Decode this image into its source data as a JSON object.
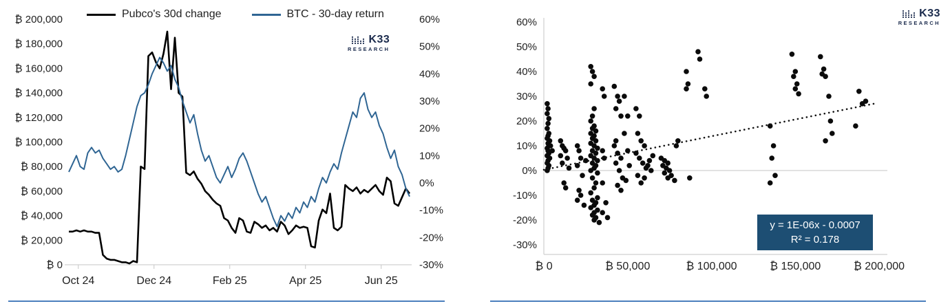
{
  "brand": {
    "name": "K33",
    "sub": "RESEARCH",
    "color": "#1b2b4d"
  },
  "divider_color": "#4a7ebd",
  "text_color": "#1f1f1f",
  "chart_data": [
    {
      "type": "line",
      "title": "",
      "legend_position": "top",
      "grid": false,
      "x": {
        "min": 0,
        "max": 9,
        "ticks": [
          0.25,
          2.25,
          4.25,
          6.25,
          8.25
        ],
        "labels": [
          "Oct 24",
          "Dec 24",
          "Feb 25",
          "Apr 25",
          "Jun 25"
        ]
      },
      "y_left": {
        "min": 0,
        "max": 200000,
        "step": 20000,
        "labels": [
          "₿ 0",
          "₿ 20,000",
          "₿ 40,000",
          "₿ 60,000",
          "₿ 80,000",
          "₿ 100,000",
          "₿ 120,000",
          "₿ 140,000",
          "₿ 160,000",
          "₿ 180,000",
          "₿ 200,000"
        ]
      },
      "y_right": {
        "min": -30,
        "max": 60,
        "step": 10,
        "labels": [
          "-30%",
          "-20%",
          "-10%",
          "0%",
          "10%",
          "20%",
          "30%",
          "40%",
          "50%",
          "60%"
        ]
      },
      "t_start": 0,
      "t_step": 0.1,
      "series": [
        {
          "name": "Pubco's 30d change",
          "color": "#000000",
          "axis": "left",
          "values": [
            27000,
            27000,
            28000,
            27000,
            28000,
            27000,
            27000,
            26000,
            26000,
            8000,
            5000,
            4000,
            4000,
            3000,
            2000,
            2000,
            1000,
            3000,
            2000,
            80000,
            78000,
            170000,
            173000,
            165000,
            160000,
            172000,
            190000,
            143000,
            185000,
            140000,
            137000,
            75000,
            73000,
            76000,
            70000,
            66000,
            60000,
            57000,
            53000,
            50000,
            48000,
            38000,
            36000,
            30000,
            26000,
            38000,
            36000,
            27000,
            26000,
            35000,
            33000,
            30000,
            32000,
            28000,
            30000,
            27000,
            35000,
            32000,
            25000,
            28000,
            32000,
            30000,
            31000,
            30000,
            15000,
            14000,
            36000,
            45000,
            42000,
            58000,
            30000,
            28000,
            31000,
            65000,
            62000,
            60000,
            63000,
            58000,
            61000,
            59000,
            62000,
            65000,
            60000,
            57000,
            71000,
            68000,
            50000,
            48000,
            55000,
            62000,
            58000
          ]
        },
        {
          "name": "BTC - 30-day return",
          "color": "#2f6593",
          "axis": "right",
          "values": [
            4,
            7,
            10,
            6,
            5,
            11,
            13,
            11,
            12,
            9,
            7,
            5,
            6,
            4,
            5,
            10,
            16,
            22,
            28,
            32,
            33,
            36,
            40,
            43,
            46,
            44,
            41,
            43,
            38,
            35,
            30,
            26,
            22,
            25,
            18,
            12,
            8,
            10,
            6,
            2,
            0,
            3,
            6,
            2,
            5,
            9,
            11,
            8,
            4,
            0,
            -4,
            -7,
            -5,
            -9,
            -13,
            -16,
            -12,
            -14,
            -11,
            -13,
            -9,
            -11,
            -7,
            -9,
            -5,
            -7,
            -2,
            2,
            0,
            4,
            7,
            5,
            11,
            16,
            21,
            26,
            24,
            31,
            33,
            27,
            24,
            26,
            21,
            18,
            13,
            9,
            12,
            6,
            3,
            -2,
            -5
          ]
        }
      ]
    },
    {
      "type": "scatter",
      "title": "",
      "grid": "zero-line-only",
      "point_color": "#0b0b0b",
      "x": {
        "min": 0,
        "max": 200000,
        "ticks": [
          0,
          50000,
          100000,
          150000,
          200000
        ],
        "labels": [
          "₿ 0",
          "₿ 50,000",
          "₿ 100,000",
          "₿ 150,000",
          "₿ 200,000"
        ]
      },
      "y": {
        "min": -30,
        "max": 60,
        "step": 10,
        "labels": [
          "-30%",
          "-20%",
          "-10%",
          "0%",
          "10%",
          "20%",
          "30%",
          "40%",
          "50%",
          "60%"
        ]
      },
      "points": [
        [
          2000,
          27
        ],
        [
          2500,
          25
        ],
        [
          2000,
          23
        ],
        [
          3000,
          21
        ],
        [
          2500,
          19
        ],
        [
          2000,
          17
        ],
        [
          3000,
          15
        ],
        [
          2500,
          14
        ],
        [
          2000,
          13
        ],
        [
          3500,
          12
        ],
        [
          2500,
          11
        ],
        [
          3000,
          10
        ],
        [
          2000,
          9
        ],
        [
          2500,
          8
        ],
        [
          3000,
          7
        ],
        [
          2000,
          6
        ],
        [
          3500,
          5
        ],
        [
          2500,
          4
        ],
        [
          2000,
          3
        ],
        [
          3000,
          2
        ],
        [
          2500,
          1
        ],
        [
          2000,
          0
        ],
        [
          4000,
          10
        ],
        [
          5000,
          8
        ],
        [
          10000,
          12
        ],
        [
          11000,
          10
        ],
        [
          12000,
          9
        ],
        [
          13000,
          8
        ],
        [
          10000,
          6
        ],
        [
          14000,
          5
        ],
        [
          11000,
          3
        ],
        [
          12000,
          -5
        ],
        [
          13000,
          -7
        ],
        [
          15000,
          1
        ],
        [
          20000,
          10
        ],
        [
          21000,
          8
        ],
        [
          22000,
          5
        ],
        [
          20000,
          2
        ],
        [
          23000,
          -2
        ],
        [
          21000,
          -8
        ],
        [
          22000,
          -10
        ],
        [
          20000,
          -12
        ],
        [
          24000,
          -14
        ],
        [
          25000,
          4
        ],
        [
          28000,
          42
        ],
        [
          29000,
          40
        ],
        [
          30000,
          38
        ],
        [
          28000,
          35
        ],
        [
          30000,
          25
        ],
        [
          29000,
          22
        ],
        [
          28000,
          20
        ],
        [
          30000,
          18
        ],
        [
          29000,
          17
        ],
        [
          31000,
          16
        ],
        [
          28000,
          15
        ],
        [
          30000,
          14
        ],
        [
          29000,
          13
        ],
        [
          31000,
          12
        ],
        [
          28000,
          11
        ],
        [
          30000,
          10
        ],
        [
          32000,
          9
        ],
        [
          29000,
          8
        ],
        [
          31000,
          7
        ],
        [
          28000,
          6
        ],
        [
          30000,
          5
        ],
        [
          32000,
          4
        ],
        [
          29000,
          3
        ],
        [
          31000,
          2
        ],
        [
          30000,
          1
        ],
        [
          28000,
          0
        ],
        [
          32000,
          -1
        ],
        [
          29000,
          -3
        ],
        [
          31000,
          -5
        ],
        [
          30000,
          -7
        ],
        [
          28000,
          -9
        ],
        [
          32000,
          -11
        ],
        [
          29000,
          -12
        ],
        [
          31000,
          -13
        ],
        [
          30000,
          -14
        ],
        [
          28000,
          -15
        ],
        [
          32000,
          -16
        ],
        [
          30000,
          -17
        ],
        [
          29000,
          -18
        ],
        [
          31000,
          -19
        ],
        [
          30000,
          -20
        ],
        [
          33000,
          -21
        ],
        [
          35000,
          33
        ],
        [
          36000,
          30
        ],
        [
          35000,
          8
        ],
        [
          36000,
          5
        ],
        [
          35000,
          -5
        ],
        [
          37000,
          -13
        ],
        [
          35000,
          -17
        ],
        [
          38000,
          -19
        ],
        [
          42000,
          34
        ],
        [
          44000,
          30
        ],
        [
          45000,
          28
        ],
        [
          43000,
          25
        ],
        [
          46000,
          22
        ],
        [
          48000,
          30
        ],
        [
          42000,
          10
        ],
        [
          44000,
          7
        ],
        [
          46000,
          5
        ],
        [
          43000,
          3
        ],
        [
          45000,
          0
        ],
        [
          47000,
          -3
        ],
        [
          44000,
          -6
        ],
        [
          46000,
          -8
        ],
        [
          43000,
          12
        ],
        [
          48000,
          15
        ],
        [
          50000,
          22
        ],
        [
          50000,
          8
        ],
        [
          49000,
          -4
        ],
        [
          51000,
          2
        ],
        [
          55000,
          25
        ],
        [
          57000,
          22
        ],
        [
          56000,
          15
        ],
        [
          58000,
          12
        ],
        [
          60000,
          10
        ],
        [
          55000,
          7
        ],
        [
          57000,
          5
        ],
        [
          59000,
          3
        ],
        [
          61000,
          1
        ],
        [
          56000,
          -2
        ],
        [
          58000,
          -5
        ],
        [
          63000,
          4
        ],
        [
          65000,
          6
        ],
        [
          62000,
          2
        ],
        [
          64000,
          0
        ],
        [
          60000,
          -3
        ],
        [
          70000,
          5
        ],
        [
          72000,
          4
        ],
        [
          74000,
          3
        ],
        [
          71000,
          2
        ],
        [
          73000,
          1
        ],
        [
          75000,
          0
        ],
        [
          72000,
          -1
        ],
        [
          76000,
          -2
        ],
        [
          74000,
          -3
        ],
        [
          78000,
          -4
        ],
        [
          80000,
          12
        ],
        [
          79000,
          10
        ],
        [
          85000,
          40
        ],
        [
          86000,
          35
        ],
        [
          85000,
          33
        ],
        [
          87000,
          -3
        ],
        [
          92000,
          48
        ],
        [
          93000,
          45
        ],
        [
          96000,
          33
        ],
        [
          97000,
          30
        ],
        [
          135000,
          18
        ],
        [
          137000,
          10
        ],
        [
          136000,
          5
        ],
        [
          138000,
          -2
        ],
        [
          135000,
          -5
        ],
        [
          148000,
          47
        ],
        [
          150000,
          40
        ],
        [
          149000,
          38
        ],
        [
          151000,
          35
        ],
        [
          150000,
          33
        ],
        [
          152000,
          31
        ],
        [
          165000,
          46
        ],
        [
          167000,
          41
        ],
        [
          166000,
          39
        ],
        [
          168000,
          38
        ],
        [
          170000,
          30
        ],
        [
          172000,
          15
        ],
        [
          168000,
          12
        ],
        [
          171000,
          20
        ],
        [
          188000,
          32
        ],
        [
          192000,
          28
        ],
        [
          186000,
          18
        ],
        [
          190000,
          27
        ]
      ],
      "trendline": {
        "equation": "y = 1E-06x - 0.0007",
        "r2": "R² = 0.178",
        "style": "dotted",
        "color": "#111111",
        "box_color": "#1d4e73",
        "x1": 0,
        "y1": 0.3,
        "x2": 197000,
        "y2": 27
      }
    }
  ]
}
